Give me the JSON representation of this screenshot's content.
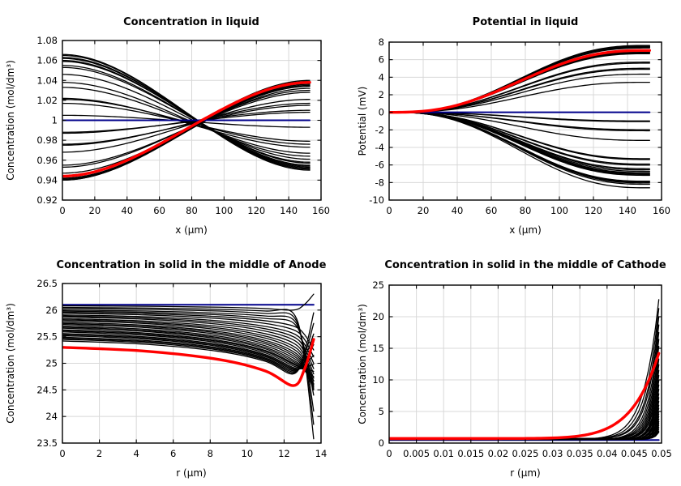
{
  "figure": {
    "background": "#ffffff",
    "colors": {
      "series_black": "#000000",
      "highlight_red": "#ff0000",
      "reference_blue": "#00008b",
      "grid": "#d8d8d8",
      "axis": "#000000",
      "text": "#000000"
    }
  },
  "chart_data": [
    {
      "id": "concentration-in-liquid",
      "type": "line",
      "title": "Concentration in liquid",
      "xlabel": "x (μm)",
      "ylabel": "Concentration (mol/dm³)",
      "xlim": [
        0,
        160
      ],
      "ylim": [
        0.92,
        1.08
      ],
      "xticks": [
        0,
        20,
        40,
        60,
        80,
        100,
        120,
        140,
        160
      ],
      "yticks": [
        0.92,
        0.94,
        0.96,
        0.98,
        1,
        1.02,
        1.04,
        1.06,
        1.08
      ],
      "grid": true,
      "legend": "none",
      "model": "sigmoid",
      "x_end": 153,
      "black_series_endpoints": [
        [
          1.066,
          0.95
        ],
        [
          1.065,
          0.951
        ],
        [
          1.063,
          0.952
        ],
        [
          1.062,
          0.953
        ],
        [
          1.06,
          0.954
        ],
        [
          1.059,
          0.955
        ],
        [
          1.055,
          0.957
        ],
        [
          1.053,
          0.958
        ],
        [
          1.046,
          0.961
        ],
        [
          1.038,
          0.964
        ],
        [
          1.033,
          0.967
        ],
        [
          1.022,
          0.973
        ],
        [
          1.021,
          0.976
        ],
        [
          1.017,
          0.979
        ],
        [
          1.005,
          0.993
        ],
        [
          0.988,
          1.008
        ],
        [
          0.987,
          1.01
        ],
        [
          0.976,
          1.015
        ],
        [
          0.975,
          1.017
        ],
        [
          0.968,
          1.021
        ],
        [
          0.955,
          1.028
        ],
        [
          0.953,
          1.03
        ],
        [
          0.947,
          1.032
        ],
        [
          0.944,
          1.034
        ],
        [
          0.942,
          1.035
        ],
        [
          0.941,
          1.036
        ],
        [
          0.94,
          1.037
        ],
        [
          0.94,
          1.039
        ],
        [
          0.941,
          1.04
        ]
      ],
      "highlight_endpoints": [
        0.944,
        1.038
      ],
      "reference_endpoints": [
        1.0,
        1.0
      ]
    },
    {
      "id": "potential-in-liquid",
      "type": "line",
      "title": "Potential in liquid",
      "xlabel": "x (μm)",
      "ylabel": "Potential (mV)",
      "xlim": [
        0,
        160
      ],
      "ylim": [
        -10,
        8
      ],
      "xticks": [
        0,
        20,
        40,
        60,
        80,
        100,
        120,
        140,
        160
      ],
      "yticks": [
        -10,
        -8,
        -6,
        -4,
        -2,
        0,
        2,
        4,
        6,
        8
      ],
      "grid": true,
      "legend": "none",
      "model": "riser",
      "x_end": 153,
      "black_end_values": [
        7.62,
        7.55,
        7.5,
        7.45,
        7.4,
        7.33,
        6.92,
        6.84,
        6.76,
        6.68,
        5.72,
        5.6,
        5.02,
        4.9,
        4.35,
        3.42,
        -0.98,
        -1.06,
        -1.98,
        -2.1,
        -3.2,
        -5.28,
        -5.38,
        -5.9,
        -6.02,
        -6.42,
        -6.55,
        -6.72,
        -6.88,
        -6.98,
        -7.08,
        -7.18,
        -7.85,
        -7.95,
        -8.05,
        -8.2,
        -8.6
      ],
      "highlight_end_value": 7.05,
      "reference_end_value": 0
    },
    {
      "id": "concentration-in-solid-anode",
      "type": "line",
      "title": "Concentration in solid in the middle of Anode",
      "xlabel": "r (μm)",
      "ylabel": "Concentration (mol/dm³)",
      "xlim": [
        0,
        14
      ],
      "ylim": [
        23.5,
        26.5
      ],
      "xticks": [
        0,
        2,
        4,
        6,
        8,
        10,
        12,
        14
      ],
      "yticks": [
        23.5,
        24,
        24.5,
        25,
        25.5,
        26,
        26.5
      ],
      "grid": true,
      "legend": "none",
      "model": "anode",
      "x_end": 13.6,
      "black_series_start_mid_end": [
        [
          25.42,
          24.8,
          25.95
        ],
        [
          25.45,
          24.82,
          25.75
        ],
        [
          25.47,
          24.84,
          25.55
        ],
        [
          25.49,
          24.86,
          25.35
        ],
        [
          25.52,
          24.88,
          25.15
        ],
        [
          25.54,
          24.9,
          24.98
        ],
        [
          25.56,
          24.92,
          24.85
        ],
        [
          25.59,
          24.95,
          24.75
        ],
        [
          25.61,
          24.98,
          24.68
        ],
        [
          25.63,
          25.0,
          24.62
        ],
        [
          25.66,
          25.03,
          24.58
        ],
        [
          25.68,
          25.06,
          24.55
        ],
        [
          25.7,
          25.1,
          24.52
        ],
        [
          25.73,
          25.14,
          24.5
        ],
        [
          25.75,
          25.18,
          24.52
        ],
        [
          25.77,
          25.22,
          24.55
        ],
        [
          25.8,
          25.27,
          24.6
        ],
        [
          25.82,
          25.32,
          24.66
        ],
        [
          25.84,
          25.38,
          24.72
        ],
        [
          25.87,
          25.44,
          24.8
        ],
        [
          25.89,
          25.5,
          24.9
        ],
        [
          25.91,
          25.56,
          25.0
        ],
        [
          25.94,
          25.63,
          25.12
        ],
        [
          25.96,
          25.7,
          25.25
        ],
        [
          25.98,
          25.76,
          24.4
        ],
        [
          26.0,
          25.82,
          24.1
        ],
        [
          26.03,
          25.88,
          23.85
        ],
        [
          26.05,
          25.94,
          23.58
        ],
        [
          26.08,
          26.0,
          26.3
        ]
      ],
      "highlight_start_mid_end": [
        25.3,
        24.58,
        25.45
      ],
      "reference_level": 26.1
    },
    {
      "id": "concentration-in-solid-cathode",
      "type": "line",
      "title": "Concentration in solid in the middle of Cathode",
      "xlabel": "r (μm)",
      "ylabel": "Concentration (mol/dm³)",
      "xlim": [
        0,
        0.05
      ],
      "ylim": [
        0,
        25
      ],
      "xticks": [
        0,
        0.005,
        0.01,
        0.015,
        0.02,
        0.025,
        0.03,
        0.035,
        0.04,
        0.045,
        0.05
      ],
      "yticks": [
        0,
        5,
        10,
        15,
        20,
        25
      ],
      "grid": true,
      "legend": "none",
      "model": "spike",
      "x_end": 0.0495,
      "black_series_base_end_power": [
        [
          0.58,
          22.7,
          18
        ],
        [
          0.62,
          21.3,
          20
        ],
        [
          0.66,
          20.0,
          22
        ],
        [
          0.7,
          18.7,
          23
        ],
        [
          0.58,
          17.5,
          25
        ],
        [
          0.62,
          16.4,
          27
        ],
        [
          0.66,
          15.3,
          29
        ],
        [
          0.7,
          14.3,
          31
        ],
        [
          0.58,
          13.3,
          32
        ],
        [
          0.62,
          12.4,
          34
        ],
        [
          0.66,
          11.5,
          36
        ],
        [
          0.7,
          10.7,
          38
        ],
        [
          0.58,
          9.9,
          40
        ],
        [
          0.62,
          9.2,
          41
        ],
        [
          0.66,
          8.5,
          43
        ],
        [
          0.7,
          7.8,
          45
        ],
        [
          0.58,
          7.2,
          47
        ],
        [
          0.62,
          6.6,
          49
        ],
        [
          0.66,
          6.0,
          50
        ],
        [
          0.7,
          5.5,
          52
        ],
        [
          0.58,
          5.0,
          54
        ],
        [
          0.62,
          4.6,
          56
        ],
        [
          0.66,
          4.2,
          58
        ],
        [
          0.7,
          3.8,
          59
        ],
        [
          0.58,
          3.4,
          61
        ],
        [
          0.62,
          3.1,
          63
        ],
        [
          0.66,
          2.8,
          65
        ],
        [
          0.7,
          2.5,
          67
        ],
        [
          0.58,
          2.2,
          68
        ],
        [
          0.62,
          1.9,
          70
        ],
        [
          0.66,
          1.7,
          72
        ]
      ],
      "highlight_base_end_power": [
        0.72,
        14.2,
        10
      ],
      "reference_level": 0.48
    }
  ]
}
